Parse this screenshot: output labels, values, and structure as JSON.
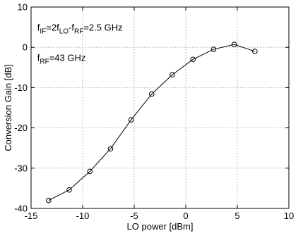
{
  "chart_data": {
    "type": "line",
    "title": "",
    "xlabel": "LO power [dBm]",
    "ylabel": "Conversion Gain [dB]",
    "xlim": [
      -15,
      10
    ],
    "ylim": [
      -40,
      10
    ],
    "xticks": [
      -15,
      -10,
      -5,
      0,
      5,
      10
    ],
    "yticks": [
      -40,
      -30,
      -20,
      -10,
      0,
      10
    ],
    "grid": true,
    "marker": "circle",
    "x": [
      -13.3,
      -11.3,
      -9.3,
      -7.3,
      -5.3,
      -3.3,
      -1.3,
      0.7,
      2.7,
      4.7,
      6.7
    ],
    "y": [
      -38,
      -35.4,
      -30.8,
      -25.2,
      -18,
      -11.6,
      -6.8,
      -3,
      -0.5,
      0.7,
      -1
    ],
    "annotations": [
      {
        "parts": [
          [
            "f",
            "n"
          ],
          [
            "IF",
            "sub"
          ],
          [
            "=2f",
            "n"
          ],
          [
            "LO",
            "sub"
          ],
          [
            "-f",
            "n"
          ],
          [
            "RF",
            "sub"
          ],
          [
            "=2.5 GHz",
            "n"
          ]
        ],
        "x": -14.4,
        "y": 4.1
      },
      {
        "parts": [
          [
            "f",
            "n"
          ],
          [
            "RF",
            "sub"
          ],
          [
            "=43 GHz",
            "n"
          ]
        ],
        "x": -14.4,
        "y": -3.4
      }
    ]
  }
}
